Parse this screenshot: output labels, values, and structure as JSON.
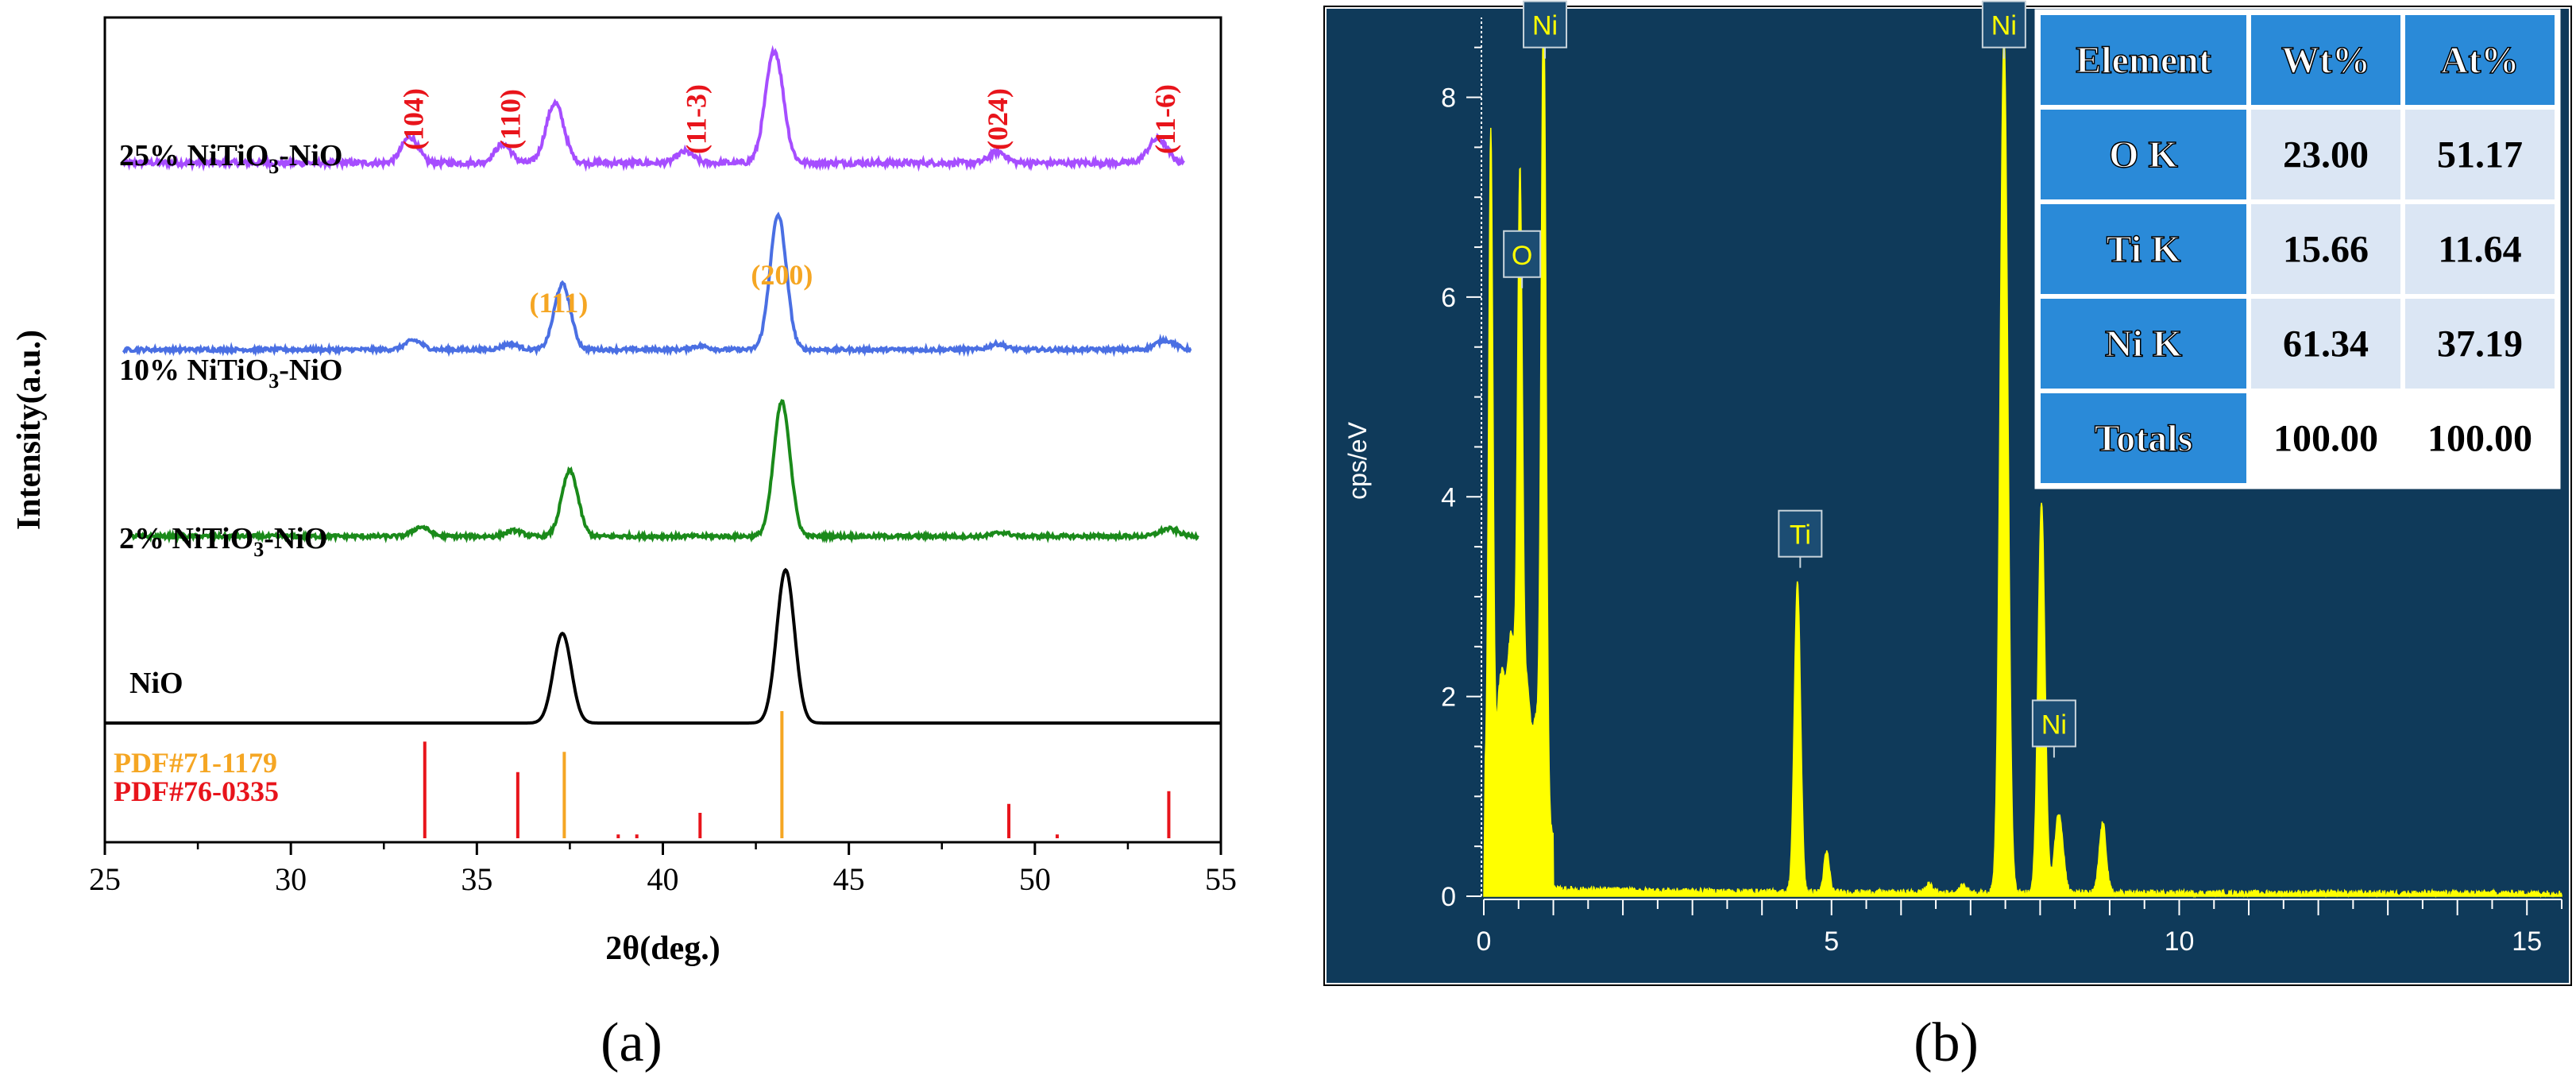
{
  "panels": {
    "a": {
      "caption": "(a)"
    },
    "b": {
      "caption": "(b)"
    }
  },
  "chart_data": [
    {
      "panel": "a",
      "type": "line",
      "xlabel": "2θ(deg.)",
      "ylabel": "Intensity(a.u.)",
      "xlim": [
        25,
        55
      ],
      "xticks": [
        25,
        30,
        35,
        40,
        45,
        50,
        55
      ],
      "y_units": "arbitrary (stacked, offset traces)",
      "series": [
        {
          "name": "25% NiTiO3-NiO",
          "name_main": "25% NiTiO",
          "name_sub": "3",
          "name_rest": "-NiO",
          "color": "#a64dff",
          "baseline": 3.0,
          "x_start": 25.5,
          "x_end": 54.0,
          "noise": 0.03,
          "peaks": [
            {
              "x": 33.2,
              "h": 0.14,
              "w": 0.22
            },
            {
              "x": 35.7,
              "h": 0.1,
              "w": 0.22
            },
            {
              "x": 37.1,
              "h": 0.32,
              "w": 0.24
            },
            {
              "x": 40.6,
              "h": 0.06,
              "w": 0.22
            },
            {
              "x": 43.0,
              "h": 0.6,
              "w": 0.24
            },
            {
              "x": 49.0,
              "h": 0.06,
              "w": 0.22
            },
            {
              "x": 53.3,
              "h": 0.13,
              "w": 0.25
            }
          ]
        },
        {
          "name": "10% NiTiO3-NiO",
          "name_main": "10% NiTiO",
          "name_sub": "3",
          "name_rest": "-NiO",
          "color": "#4a6fe3",
          "baseline": 2.0,
          "x_start": 25.5,
          "x_end": 54.2,
          "noise": 0.02,
          "peaks": [
            {
              "x": 33.3,
              "h": 0.05,
              "w": 0.22
            },
            {
              "x": 35.9,
              "h": 0.03,
              "w": 0.22
            },
            {
              "x": 37.3,
              "h": 0.35,
              "w": 0.22
            },
            {
              "x": 41.0,
              "h": 0.02,
              "w": 0.22
            },
            {
              "x": 43.1,
              "h": 0.72,
              "w": 0.22
            },
            {
              "x": 49.0,
              "h": 0.03,
              "w": 0.22
            },
            {
              "x": 53.5,
              "h": 0.05,
              "w": 0.25
            }
          ]
        },
        {
          "name": "2% NiTiO3-NiO",
          "name_main": "2% NiTiO",
          "name_sub": "3",
          "name_rest": "-NiO",
          "color": "#1a8a1a",
          "baseline": 1.0,
          "x_start": 25.7,
          "x_end": 54.4,
          "noise": 0.02,
          "peaks": [
            {
              "x": 33.5,
              "h": 0.05,
              "w": 0.22
            },
            {
              "x": 36.0,
              "h": 0.03,
              "w": 0.22
            },
            {
              "x": 37.5,
              "h": 0.35,
              "w": 0.22
            },
            {
              "x": 43.2,
              "h": 0.72,
              "w": 0.22
            },
            {
              "x": 49.1,
              "h": 0.02,
              "w": 0.22
            },
            {
              "x": 53.6,
              "h": 0.04,
              "w": 0.25
            }
          ]
        },
        {
          "name": "NiO",
          "name_main": "NiO",
          "name_sub": "",
          "name_rest": "",
          "color": "#000000",
          "baseline": 0.0,
          "x_start": 25.0,
          "x_end": 55.0,
          "noise": 0.0,
          "peaks": [
            {
              "x": 37.3,
              "h": 0.48,
              "w": 0.24
            },
            {
              "x": 43.3,
              "h": 0.82,
              "w": 0.24
            }
          ]
        }
      ],
      "reference_cards": [
        {
          "name": "PDF#71-1179",
          "color": "#f5a623",
          "sticks": [
            {
              "x": 37.35,
              "h": 0.68
            },
            {
              "x": 43.2,
              "h": 1.0
            }
          ]
        },
        {
          "name": "PDF#76-0335",
          "color": "#e8141b",
          "sticks": [
            {
              "x": 33.6,
              "h": 0.76
            },
            {
              "x": 36.1,
              "h": 0.52
            },
            {
              "x": 38.8,
              "h": 0.03
            },
            {
              "x": 39.3,
              "h": 0.03
            },
            {
              "x": 41.0,
              "h": 0.2
            },
            {
              "x": 49.3,
              "h": 0.27
            },
            {
              "x": 50.6,
              "h": 0.03
            },
            {
              "x": 53.6,
              "h": 0.37
            }
          ]
        }
      ],
      "annotations": [
        {
          "text": "(104)",
          "x": 33.3,
          "color": "#e8141b",
          "vertical": true,
          "row": "top"
        },
        {
          "text": "(110)",
          "x": 35.9,
          "color": "#e8141b",
          "vertical": true,
          "row": "top"
        },
        {
          "text": "(11-3)",
          "x": 40.9,
          "color": "#e8141b",
          "vertical": true,
          "row": "top"
        },
        {
          "text": "(024)",
          "x": 49.0,
          "color": "#e8141b",
          "vertical": true,
          "row": "top"
        },
        {
          "text": "(11-6)",
          "x": 53.5,
          "color": "#e8141b",
          "vertical": true,
          "row": "top"
        },
        {
          "text": "(111)",
          "x": 37.2,
          "color": "#f5a623",
          "vertical": false,
          "row": "mid"
        },
        {
          "text": "(200)",
          "x": 43.2,
          "color": "#f5a623",
          "vertical": false,
          "row": "mid"
        }
      ]
    },
    {
      "panel": "b",
      "type": "area",
      "ylabel": "cps/eV",
      "xlim": [
        0,
        15.5
      ],
      "ylim": [
        0,
        8.8
      ],
      "xticks": [
        0,
        5,
        10,
        15
      ],
      "yticks": [
        0,
        2,
        4,
        6,
        8
      ],
      "colors": {
        "background": "#0f3a5a",
        "fill": "#ffff00",
        "axis": "#ffffff",
        "label_bg": "#1c4d73"
      },
      "peaks": [
        {
          "x": 0.1,
          "h": 6.5,
          "w": 0.03
        },
        {
          "x": 0.25,
          "h": 1.2,
          "w": 0.06
        },
        {
          "x": 0.4,
          "h": 1.7,
          "w": 0.06
        },
        {
          "x": 0.52,
          "h": 6.1,
          "w": 0.035
        },
        {
          "x": 0.62,
          "h": 1.3,
          "w": 0.05
        },
        {
          "x": 0.75,
          "h": 1.0,
          "w": 0.05
        },
        {
          "x": 0.86,
          "h": 8.3,
          "w": 0.035
        },
        {
          "x": 4.51,
          "h": 3.1,
          "w": 0.045
        },
        {
          "x": 4.93,
          "h": 0.4,
          "w": 0.04
        },
        {
          "x": 6.4,
          "h": 0.08,
          "w": 0.05
        },
        {
          "x": 6.9,
          "h": 0.07,
          "w": 0.05
        },
        {
          "x": 7.48,
          "h": 8.6,
          "w": 0.055
        },
        {
          "x": 8.02,
          "h": 3.9,
          "w": 0.05
        },
        {
          "x": 8.27,
          "h": 0.8,
          "w": 0.06
        },
        {
          "x": 8.9,
          "h": 0.7,
          "w": 0.05
        }
      ],
      "continuum": {
        "h": 0.06,
        "decay": 3.0
      },
      "peak_labels": [
        {
          "text": "Ni",
          "x": 0.88,
          "y": 8.5
        },
        {
          "text": "O",
          "x": 0.55,
          "y": 6.2
        },
        {
          "text": "Ti",
          "x": 4.55,
          "y": 3.4
        },
        {
          "text": "Ni",
          "x": 7.48,
          "y": 8.5
        },
        {
          "text": "Ni",
          "x": 8.2,
          "y": 1.5
        }
      ],
      "table": {
        "columns": [
          "Element",
          "Wt%",
          "At%"
        ],
        "rows": [
          [
            "O K",
            "23.00",
            "51.17"
          ],
          [
            "Ti K",
            "15.66",
            "11.64"
          ],
          [
            "Ni K",
            "61.34",
            "37.19"
          ],
          [
            "Totals",
            "100.00",
            "100.00"
          ]
        ]
      }
    }
  ]
}
